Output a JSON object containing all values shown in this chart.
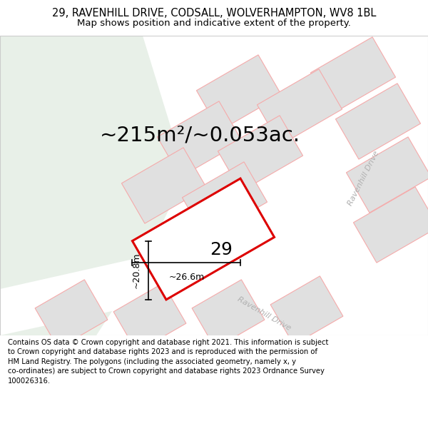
{
  "title_line1": "29, RAVENHILL DRIVE, CODSALL, WOLVERHAMPTON, WV8 1BL",
  "title_line2": "Map shows position and indicative extent of the property.",
  "footer_lines": [
    "Contains OS data © Crown copyright and database right 2021. This information is subject",
    "to Crown copyright and database rights 2023 and is reproduced with the permission of",
    "HM Land Registry. The polygons (including the associated geometry, namely x, y",
    "co-ordinates) are subject to Crown copyright and database rights 2023 Ordnance Survey",
    "100026316."
  ],
  "area_text": "~215m²/~0.053ac.",
  "number_label": "29",
  "dim_width": "~26.6m",
  "dim_height": "~20.8m",
  "map_bg": "#ffffff",
  "green_color": "#e8f0e8",
  "parcel_fill": "#e0e0e0",
  "parcel_stroke": "#f5aaaa",
  "highlight_stroke": "#dd0000",
  "road_label_color": "#b0b0b0",
  "title_fontsize": 10.5,
  "subtitle_fontsize": 9.5,
  "footer_fontsize": 7.2,
  "area_fontsize": 21,
  "number_fontsize": 18,
  "dim_fontsize": 9,
  "road_label_fontsize": 8
}
